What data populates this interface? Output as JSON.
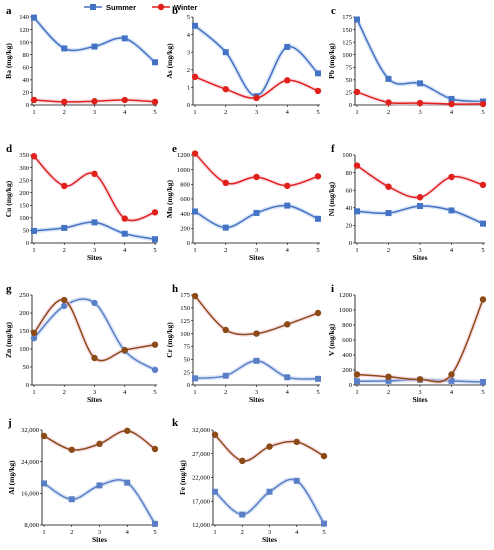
{
  "legend": {
    "summer": {
      "label": "Summer",
      "color": "#4472c4"
    },
    "winter": {
      "label": "Winter",
      "color": "#e0201b"
    }
  },
  "chart_data": [
    {
      "type": "line",
      "panel": "a",
      "title": "",
      "xlabel": "",
      "ylabel": "Ba (mg/kg)",
      "categories": [
        "1",
        "2",
        "3",
        "4",
        "5"
      ],
      "ylim": [
        0,
        140
      ],
      "yticks": [
        "0",
        "20",
        "40",
        "60",
        "80",
        "100",
        "120",
        "140"
      ],
      "series": [
        {
          "name": "Summer",
          "color": "#4472c4",
          "marker": "square",
          "values": [
            139,
            90,
            93,
            106,
            68
          ]
        },
        {
          "name": "Winter",
          "color": "#e0201b",
          "marker": "circle",
          "values": [
            8,
            5,
            6,
            8,
            5
          ]
        }
      ]
    },
    {
      "type": "line",
      "panel": "b",
      "title": "",
      "xlabel": "",
      "ylabel": "As (mg/kg)",
      "categories": [
        "1",
        "2",
        "3",
        "4",
        "5"
      ],
      "ylim": [
        0,
        5
      ],
      "yticks": [
        "0",
        "1",
        "2",
        "3",
        "4",
        "5"
      ],
      "series": [
        {
          "name": "Summer",
          "color": "#4472c4",
          "marker": "square",
          "values": [
            4.5,
            3.0,
            0.5,
            3.3,
            1.8
          ]
        },
        {
          "name": "Winter",
          "color": "#e0201b",
          "marker": "circle",
          "values": [
            1.6,
            0.9,
            0.4,
            1.4,
            0.8
          ]
        }
      ]
    },
    {
      "type": "line",
      "panel": "c",
      "title": "",
      "xlabel": "",
      "ylabel": "Pb (mg/kg)",
      "categories": [
        "1",
        "2",
        "3",
        "4",
        "5"
      ],
      "ylim": [
        0,
        175
      ],
      "yticks": [
        "0",
        "25",
        "50",
        "75",
        "100",
        "125",
        "150",
        "175"
      ],
      "series": [
        {
          "name": "Summer",
          "color": "#4472c4",
          "marker": "square",
          "values": [
            170,
            52,
            43,
            12,
            7
          ]
        },
        {
          "name": "Winter",
          "color": "#e0201b",
          "marker": "circle",
          "values": [
            26,
            5,
            4,
            2,
            2
          ]
        }
      ]
    },
    {
      "type": "line",
      "panel": "d",
      "title": "",
      "xlabel": "Sites",
      "ylabel": "Cu (mg/kg)",
      "categories": [
        "1",
        "2",
        "3",
        "4",
        "5"
      ],
      "ylim": [
        0,
        350
      ],
      "yticks": [
        "0",
        "50",
        "100",
        "150",
        "200",
        "250",
        "300",
        "350"
      ],
      "series": [
        {
          "name": "Summer",
          "color": "#4472c4",
          "marker": "square",
          "values": [
            48,
            60,
            82,
            37,
            15
          ]
        },
        {
          "name": "Winter",
          "color": "#e0201b",
          "marker": "circle",
          "values": [
            345,
            227,
            275,
            97,
            122
          ]
        }
      ]
    },
    {
      "type": "line",
      "panel": "e",
      "title": "",
      "xlabel": "Sites",
      "ylabel": "Mn (mg/kg)",
      "categories": [
        "1",
        "2",
        "3",
        "4",
        "5"
      ],
      "ylim": [
        0,
        1200
      ],
      "yticks": [
        "0",
        "200",
        "400",
        "600",
        "800",
        "1000",
        "1200"
      ],
      "series": [
        {
          "name": "Summer",
          "color": "#4472c4",
          "marker": "square",
          "values": [
            430,
            210,
            410,
            510,
            330
          ]
        },
        {
          "name": "Winter",
          "color": "#e0201b",
          "marker": "circle",
          "values": [
            1220,
            820,
            900,
            780,
            910
          ]
        }
      ]
    },
    {
      "type": "line",
      "panel": "f",
      "title": "",
      "xlabel": "Sites",
      "ylabel": "Ni (mg/kg)",
      "categories": [
        "1",
        "2",
        "3",
        "4",
        "5"
      ],
      "ylim": [
        0,
        100
      ],
      "yticks": [
        "0",
        "20",
        "40",
        "60",
        "80",
        "100"
      ],
      "series": [
        {
          "name": "Summer",
          "color": "#4472c4",
          "marker": "square",
          "values": [
            36,
            34,
            42,
            37,
            22
          ]
        },
        {
          "name": "Winter",
          "color": "#e0201b",
          "marker": "circle",
          "values": [
            88,
            64,
            52,
            75,
            66
          ]
        }
      ]
    },
    {
      "type": "line",
      "panel": "g",
      "title": "",
      "xlabel": "Sites",
      "ylabel": "Zn (mg/kg)",
      "categories": [
        "1",
        "2",
        "3",
        "4",
        "5"
      ],
      "ylim": [
        0,
        250
      ],
      "yticks": [
        "0",
        "50",
        "100",
        "150",
        "200",
        "250"
      ],
      "series": [
        {
          "name": "Summer",
          "color": "#5b7fc7",
          "marker": "circle",
          "values": [
            130,
            220,
            228,
            95,
            42
          ]
        },
        {
          "name": "Winter",
          "color": "#8b4a16",
          "marker": "circle",
          "values": [
            145,
            236,
            75,
            97,
            112
          ]
        }
      ]
    },
    {
      "type": "line",
      "panel": "h",
      "title": "",
      "xlabel": "Sites",
      "ylabel": "Cr (mg/kg)",
      "categories": [
        "1",
        "2",
        "3",
        "4",
        "5"
      ],
      "ylim": [
        0,
        175
      ],
      "yticks": [
        "0",
        "25",
        "50",
        "75",
        "100",
        "125",
        "150",
        "175"
      ],
      "series": [
        {
          "name": "Summer",
          "color": "#5b7fc7",
          "marker": "square",
          "values": [
            13,
            18,
            47,
            15,
            12
          ]
        },
        {
          "name": "Winter",
          "color": "#8b4a16",
          "marker": "circle",
          "values": [
            173,
            107,
            100,
            118,
            140
          ]
        }
      ]
    },
    {
      "type": "line",
      "panel": "i",
      "title": "",
      "xlabel": "Sites",
      "ylabel": "V (mg/kg)",
      "categories": [
        "1",
        "2",
        "3",
        "4",
        "5"
      ],
      "ylim": [
        0,
        1200
      ],
      "yticks": [
        "0",
        "200",
        "400",
        "600",
        "800",
        "1000",
        "1200"
      ],
      "series": [
        {
          "name": "Summer",
          "color": "#5b7fc7",
          "marker": "square",
          "values": [
            50,
            55,
            70,
            55,
            40
          ]
        },
        {
          "name": "Winter",
          "color": "#8b4a16",
          "marker": "circle",
          "values": [
            140,
            110,
            75,
            140,
            1140
          ]
        }
      ]
    },
    {
      "type": "line",
      "panel": "j",
      "title": "",
      "xlabel": "Sites",
      "ylabel": "Al (mg/kg)",
      "categories": [
        "1",
        "2",
        "3",
        "4",
        "5"
      ],
      "ylim": [
        8000,
        32000
      ],
      "yticks": [
        "8,000",
        "16,000",
        "24,000",
        "32,000"
      ],
      "series": [
        {
          "name": "Summer",
          "color": "#5b7fc7",
          "marker": "square",
          "values": [
            18500,
            14500,
            18000,
            18700,
            8300
          ]
        },
        {
          "name": "Winter",
          "color": "#8b4a16",
          "marker": "circle",
          "values": [
            30500,
            27000,
            28500,
            31800,
            27200
          ]
        }
      ]
    },
    {
      "type": "line",
      "panel": "k",
      "title": "",
      "xlabel": "Sites",
      "ylabel": "Fe (mg/kg)",
      "categories": [
        "1",
        "2",
        "3",
        "4",
        "5"
      ],
      "ylim": [
        12000,
        32000
      ],
      "yticks": [
        "12,000",
        "17,000",
        "22,000",
        "27,000",
        "32,000"
      ],
      "series": [
        {
          "name": "Summer",
          "color": "#5b7fc7",
          "marker": "square",
          "values": [
            19000,
            14200,
            19000,
            21300,
            12300
          ]
        },
        {
          "name": "Winter",
          "color": "#8b4a16",
          "marker": "circle",
          "values": [
            31000,
            25500,
            28500,
            29500,
            26500
          ]
        }
      ]
    }
  ]
}
